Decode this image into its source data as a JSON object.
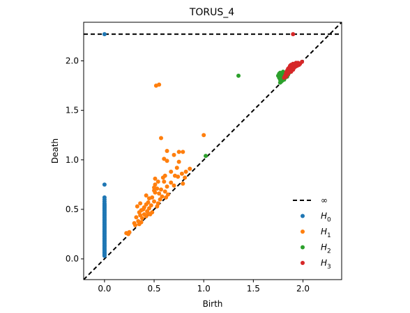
{
  "chart_data": {
    "type": "scatter",
    "title": "TORUS_4",
    "xlabel": "Birth",
    "ylabel": "Death",
    "xlim": [
      -0.21,
      2.39
    ],
    "ylim": [
      -0.21,
      2.39
    ],
    "x_ticks": [
      {
        "value": 0.0,
        "label": "0.0"
      },
      {
        "value": 0.5,
        "label": "0.5"
      },
      {
        "value": 1.0,
        "label": "1.0"
      },
      {
        "value": 1.5,
        "label": "1.5"
      },
      {
        "value": 2.0,
        "label": "2.0"
      }
    ],
    "y_ticks": [
      {
        "value": 0.0,
        "label": "0.0"
      },
      {
        "value": 0.5,
        "label": "0.5"
      },
      {
        "value": 1.0,
        "label": "1.0"
      },
      {
        "value": 1.5,
        "label": "1.5"
      },
      {
        "value": 2.0,
        "label": "2.0"
      }
    ],
    "grid": false,
    "diagonal": {
      "style": "dashed",
      "color": "#000000"
    },
    "infinity_line": {
      "y": 2.27,
      "label": "∞",
      "style": "dashed",
      "color": "#000000"
    },
    "legend": {
      "placement": "bottom-right"
    },
    "series": [
      {
        "name": "H0",
        "label_base": "H",
        "label_sub": "0",
        "color": "#1f77b4",
        "points": [
          [
            0.0,
            2.27
          ],
          [
            0.0,
            0.75
          ],
          [
            0.0,
            0.62
          ],
          [
            0.0,
            0.6
          ],
          [
            0.0,
            0.58
          ],
          [
            0.0,
            0.56
          ],
          [
            0.0,
            0.55
          ],
          [
            0.0,
            0.54
          ],
          [
            0.0,
            0.53
          ],
          [
            0.0,
            0.52
          ],
          [
            0.0,
            0.51
          ],
          [
            0.0,
            0.5
          ],
          [
            0.0,
            0.49
          ],
          [
            0.0,
            0.48
          ],
          [
            0.0,
            0.47
          ],
          [
            0.0,
            0.46
          ],
          [
            0.0,
            0.45
          ],
          [
            0.0,
            0.44
          ],
          [
            0.0,
            0.43
          ],
          [
            0.0,
            0.42
          ],
          [
            0.0,
            0.41
          ],
          [
            0.0,
            0.4
          ],
          [
            0.0,
            0.39
          ],
          [
            0.0,
            0.38
          ],
          [
            0.0,
            0.37
          ],
          [
            0.0,
            0.36
          ],
          [
            0.0,
            0.35
          ],
          [
            0.0,
            0.34
          ],
          [
            0.0,
            0.33
          ],
          [
            0.0,
            0.32
          ],
          [
            0.0,
            0.31
          ],
          [
            0.0,
            0.3
          ],
          [
            0.0,
            0.29
          ],
          [
            0.0,
            0.28
          ],
          [
            0.0,
            0.27
          ],
          [
            0.0,
            0.26
          ],
          [
            0.0,
            0.25
          ],
          [
            0.0,
            0.24
          ],
          [
            0.0,
            0.23
          ],
          [
            0.0,
            0.22
          ],
          [
            0.0,
            0.21
          ],
          [
            0.0,
            0.2
          ],
          [
            0.0,
            0.19
          ],
          [
            0.0,
            0.18
          ],
          [
            0.0,
            0.17
          ],
          [
            0.0,
            0.16
          ],
          [
            0.0,
            0.15
          ],
          [
            0.0,
            0.14
          ],
          [
            0.0,
            0.13
          ],
          [
            0.0,
            0.12
          ],
          [
            0.0,
            0.11
          ],
          [
            0.0,
            0.1
          ],
          [
            0.0,
            0.09
          ],
          [
            0.0,
            0.08
          ],
          [
            0.0,
            0.07
          ],
          [
            0.0,
            0.06
          ],
          [
            0.0,
            0.05
          ],
          [
            0.0,
            0.04
          ],
          [
            0.0,
            0.03
          ]
        ]
      },
      {
        "name": "H1",
        "label_base": "H",
        "label_sub": "1",
        "color": "#ff7f0e",
        "points": [
          [
            0.52,
            1.75
          ],
          [
            0.55,
            1.76
          ],
          [
            1.0,
            1.25
          ],
          [
            0.57,
            1.22
          ],
          [
            0.63,
            1.09
          ],
          [
            0.75,
            1.08
          ],
          [
            0.79,
            1.08
          ],
          [
            0.7,
            1.05
          ],
          [
            0.6,
            1.01
          ],
          [
            0.63,
            0.99
          ],
          [
            0.75,
            0.98
          ],
          [
            0.73,
            0.92
          ],
          [
            0.86,
            0.91
          ],
          [
            0.67,
            0.88
          ],
          [
            0.82,
            0.88
          ],
          [
            0.78,
            0.86
          ],
          [
            0.61,
            0.84
          ],
          [
            0.71,
            0.84
          ],
          [
            0.59,
            0.82
          ],
          [
            0.74,
            0.83
          ],
          [
            0.81,
            0.82
          ],
          [
            0.51,
            0.81
          ],
          [
            0.54,
            0.78
          ],
          [
            0.6,
            0.78
          ],
          [
            0.67,
            0.77
          ],
          [
            0.79,
            0.76
          ],
          [
            0.51,
            0.75
          ],
          [
            0.63,
            0.73
          ],
          [
            0.7,
            0.74
          ],
          [
            0.5,
            0.72
          ],
          [
            0.53,
            0.71
          ],
          [
            0.57,
            0.7
          ],
          [
            0.5,
            0.69
          ],
          [
            0.61,
            0.68
          ],
          [
            0.51,
            0.67
          ],
          [
            0.55,
            0.66
          ],
          [
            0.64,
            0.65
          ],
          [
            0.42,
            0.64
          ],
          [
            0.48,
            0.62
          ],
          [
            0.58,
            0.63
          ],
          [
            0.45,
            0.61
          ],
          [
            0.56,
            0.6
          ],
          [
            0.62,
            0.62
          ],
          [
            0.5,
            0.58
          ],
          [
            0.44,
            0.57
          ],
          [
            0.54,
            0.56
          ],
          [
            0.36,
            0.56
          ],
          [
            0.42,
            0.55
          ],
          [
            0.47,
            0.54
          ],
          [
            0.53,
            0.53
          ],
          [
            0.33,
            0.53
          ],
          [
            0.4,
            0.52
          ],
          [
            0.45,
            0.51
          ],
          [
            0.39,
            0.5
          ],
          [
            0.37,
            0.49
          ],
          [
            0.43,
            0.48
          ],
          [
            0.48,
            0.47
          ],
          [
            0.35,
            0.47
          ],
          [
            0.4,
            0.45
          ],
          [
            0.36,
            0.44
          ],
          [
            0.42,
            0.43
          ],
          [
            0.44,
            0.46
          ],
          [
            0.46,
            0.45
          ],
          [
            0.32,
            0.42
          ],
          [
            0.38,
            0.41
          ],
          [
            0.34,
            0.38
          ],
          [
            0.37,
            0.37
          ],
          [
            0.3,
            0.36
          ],
          [
            0.31,
            0.34
          ],
          [
            0.35,
            0.35
          ],
          [
            0.25,
            0.27
          ],
          [
            0.22,
            0.26
          ],
          [
            0.24,
            0.25
          ]
        ]
      },
      {
        "name": "H2",
        "label_base": "H",
        "label_sub": "2",
        "color": "#2ca02c",
        "points": [
          [
            1.35,
            1.85
          ],
          [
            1.02,
            1.04
          ],
          [
            1.76,
            1.87
          ],
          [
            1.77,
            1.88
          ],
          [
            1.8,
            1.89
          ],
          [
            1.82,
            1.88
          ],
          [
            1.84,
            1.89
          ],
          [
            1.86,
            1.88
          ],
          [
            1.75,
            1.85
          ],
          [
            1.78,
            1.86
          ],
          [
            1.81,
            1.86
          ],
          [
            1.83,
            1.87
          ],
          [
            1.85,
            1.86
          ],
          [
            1.76,
            1.83
          ],
          [
            1.79,
            1.84
          ],
          [
            1.82,
            1.85
          ],
          [
            1.84,
            1.84
          ],
          [
            1.77,
            1.81
          ],
          [
            1.8,
            1.82
          ],
          [
            1.82,
            1.83
          ],
          [
            1.78,
            1.79
          ],
          [
            1.79,
            1.8
          ],
          [
            1.81,
            1.81
          ],
          [
            1.77,
            1.78
          ],
          [
            1.83,
            1.86
          ]
        ]
      },
      {
        "name": "H3",
        "label_base": "H",
        "label_sub": "3",
        "color": "#d62728",
        "points": [
          [
            1.9,
            2.27
          ],
          [
            1.99,
            1.99
          ],
          [
            1.95,
            1.98
          ],
          [
            1.92,
            1.97
          ],
          [
            1.9,
            1.97
          ],
          [
            1.88,
            1.96
          ],
          [
            1.93,
            1.96
          ],
          [
            1.96,
            1.96
          ],
          [
            1.87,
            1.95
          ],
          [
            1.9,
            1.95
          ],
          [
            1.94,
            1.95
          ],
          [
            1.86,
            1.93
          ],
          [
            1.89,
            1.94
          ],
          [
            1.92,
            1.94
          ],
          [
            1.85,
            1.92
          ],
          [
            1.88,
            1.92
          ],
          [
            1.91,
            1.93
          ],
          [
            1.84,
            1.9
          ],
          [
            1.87,
            1.9
          ],
          [
            1.9,
            1.91
          ],
          [
            1.83,
            1.88
          ],
          [
            1.86,
            1.89
          ],
          [
            1.85,
            1.87
          ],
          [
            1.88,
            1.89
          ],
          [
            1.82,
            1.85
          ],
          [
            1.84,
            1.86
          ],
          [
            1.81,
            1.83
          ],
          [
            1.83,
            1.84
          ],
          [
            1.93,
            1.98
          ],
          [
            1.97,
            1.97
          ]
        ]
      }
    ]
  }
}
